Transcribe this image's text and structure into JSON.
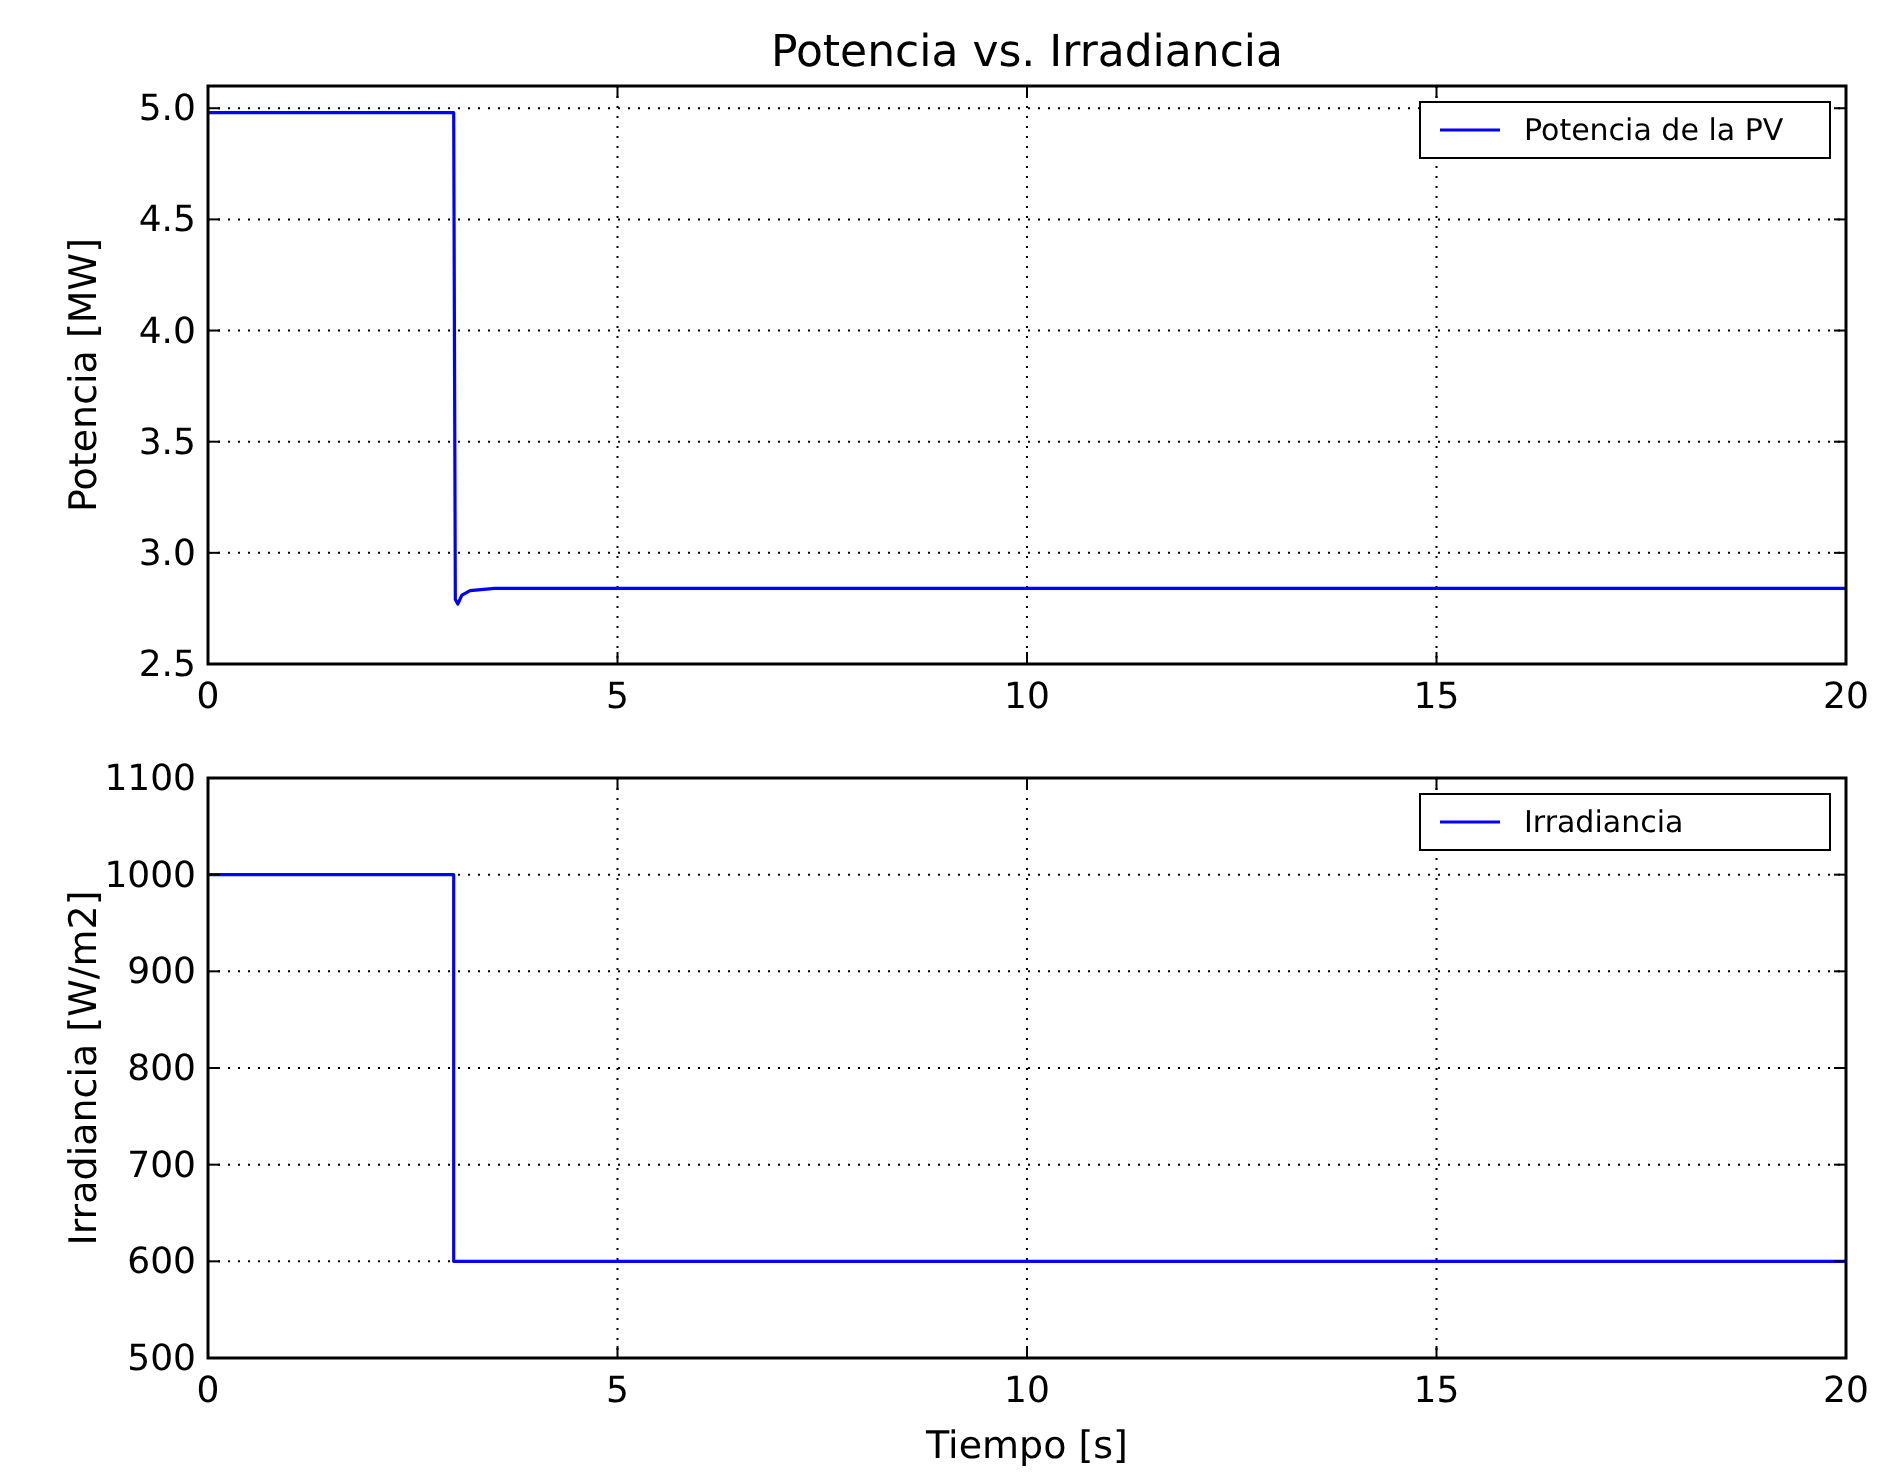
{
  "chart_data": [
    {
      "type": "line",
      "title": "Potencia vs. Irradiancia",
      "ylabel": "Potencia [MW]",
      "xlim": [
        0,
        20
      ],
      "xticks": [
        0,
        5,
        10,
        15,
        20
      ],
      "ylim": [
        2.5,
        5.1
      ],
      "yticks": [
        {
          "value": 2.5,
          "label": "2.5"
        },
        {
          "value": 3,
          "label": "3.0"
        },
        {
          "value": 3.5,
          "label": "3.5"
        },
        {
          "value": 4,
          "label": "4.0"
        },
        {
          "value": 4.5,
          "label": "4.5"
        },
        {
          "value": 5,
          "label": "5.0"
        }
      ],
      "grid": true,
      "legend": "top right",
      "series": [
        {
          "name": "Potencia de la PV",
          "color": "#0000ff",
          "x": [
            0,
            3,
            3.02,
            3.05,
            3.1,
            3.2,
            3.5,
            5,
            10,
            20
          ],
          "values": [
            4.98,
            4.98,
            2.79,
            2.77,
            2.81,
            2.83,
            2.84,
            2.84,
            2.84,
            2.84
          ]
        }
      ]
    },
    {
      "type": "line",
      "xlabel": "Tiempo [s]",
      "ylabel": "Irradiancia [W/m2]",
      "xlim": [
        0,
        20
      ],
      "xticks": [
        0,
        5,
        10,
        15,
        20
      ],
      "ylim": [
        500,
        1100
      ],
      "yticks": [
        500,
        600,
        700,
        800,
        900,
        1000,
        1100
      ],
      "grid": true,
      "legend": "top right",
      "series": [
        {
          "name": "Irradiancia",
          "color": "#0000ff",
          "x": [
            0,
            3,
            3,
            20
          ],
          "values": [
            1000,
            1000,
            600,
            600
          ]
        }
      ]
    }
  ]
}
